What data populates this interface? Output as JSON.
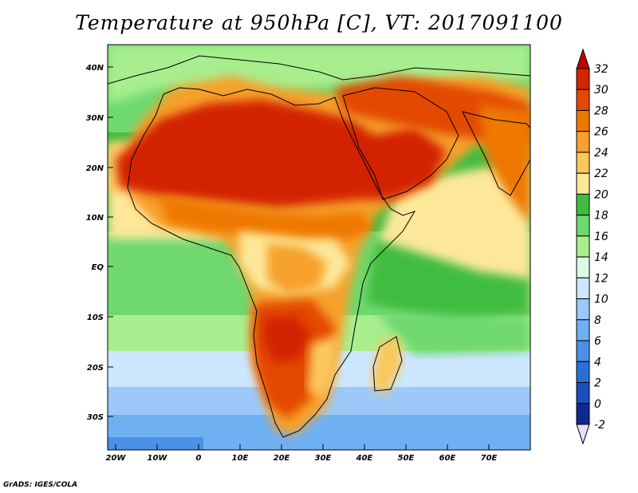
{
  "title": "Temperature at 950hPa [C], VT: 2017091100",
  "credit": "GrADS: IGES/COLA",
  "lat_labels": [
    "40N",
    "30N",
    "20N",
    "10N",
    "EQ",
    "10S",
    "20S",
    "30S"
  ],
  "lon_labels": [
    "20W",
    "10W",
    "0",
    "10E",
    "20E",
    "30E",
    "40E",
    "50E",
    "60E",
    "70E"
  ],
  "colorbar": {
    "labels": [
      "32",
      "30",
      "28",
      "26",
      "24",
      "22",
      "20",
      "18",
      "16",
      "14",
      "12",
      "10",
      "8",
      "6",
      "4",
      "2",
      "0",
      "-2"
    ],
    "colors": [
      "#d32400",
      "#e34a00",
      "#ee7800",
      "#f6a12c",
      "#fbc75c",
      "#fde89a",
      "#3fbd3f",
      "#6fd86f",
      "#a8ee8f",
      "#dff8e6",
      "#cce7ff",
      "#9cc9f8",
      "#6fb0f2",
      "#4a90e6",
      "#2a6fd6",
      "#1b4fc0",
      "#11288f"
    ],
    "top_arrow": "#c20000",
    "bottom_arrow": "#e6e0ff"
  }
}
